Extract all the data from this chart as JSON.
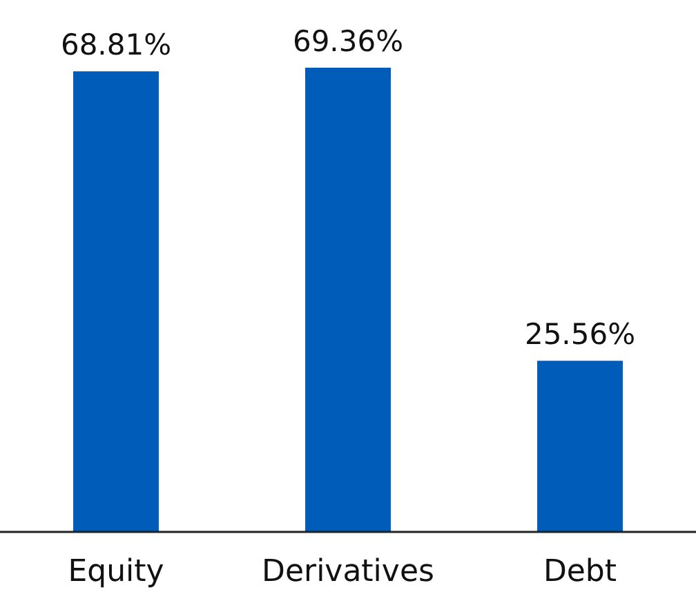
{
  "chart_data": {
    "type": "bar",
    "categories": [
      "Equity",
      "Derivatives",
      "Debt"
    ],
    "values": [
      68.81,
      69.36,
      25.56
    ],
    "color": "#005cb9",
    "value_labels": [
      "68.81%",
      "69.36%",
      "25.56%"
    ]
  }
}
